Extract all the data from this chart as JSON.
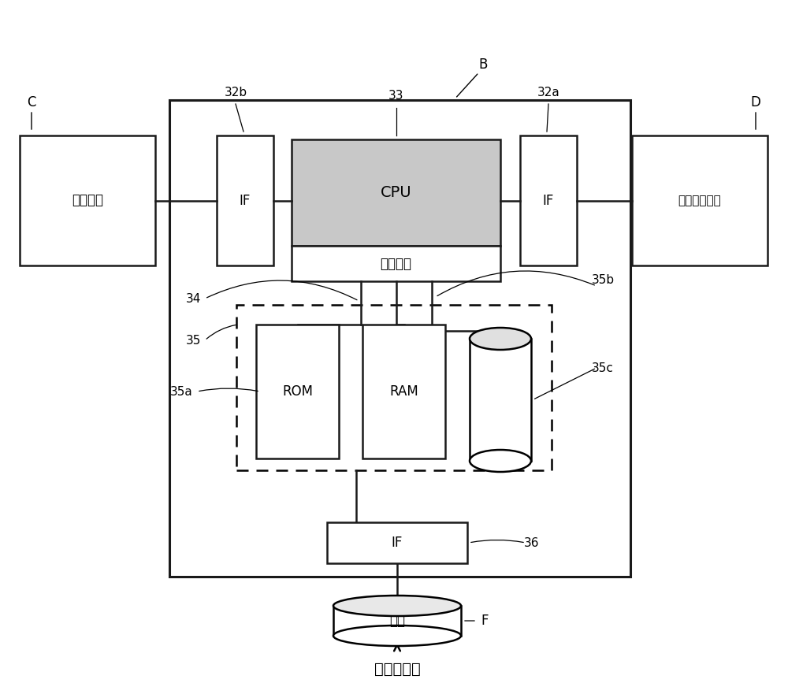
{
  "bg_color": "#ffffff",
  "line_color": "#1a1a1a",
  "fig_width": 10.0,
  "fig_height": 8.67,
  "labels": {
    "B": "B",
    "C": "C",
    "D": "D",
    "F": "F",
    "display": "显示装置",
    "operation_input": "操作输入单元",
    "cpu": "CPU",
    "calc_unit": "计算单元",
    "IF_left": "IF",
    "IF_right": "IF",
    "IF_bottom": "IF",
    "ROM": "ROM",
    "RAM": "RAM",
    "file": "文件",
    "to_other": "到其他装置",
    "label_32b": "32b",
    "label_33": "33",
    "label_32a": "32a",
    "label_34": "34",
    "label_35": "35",
    "label_35a": "35a",
    "label_35b": "35b",
    "label_35c": "35c",
    "label_36": "36"
  }
}
